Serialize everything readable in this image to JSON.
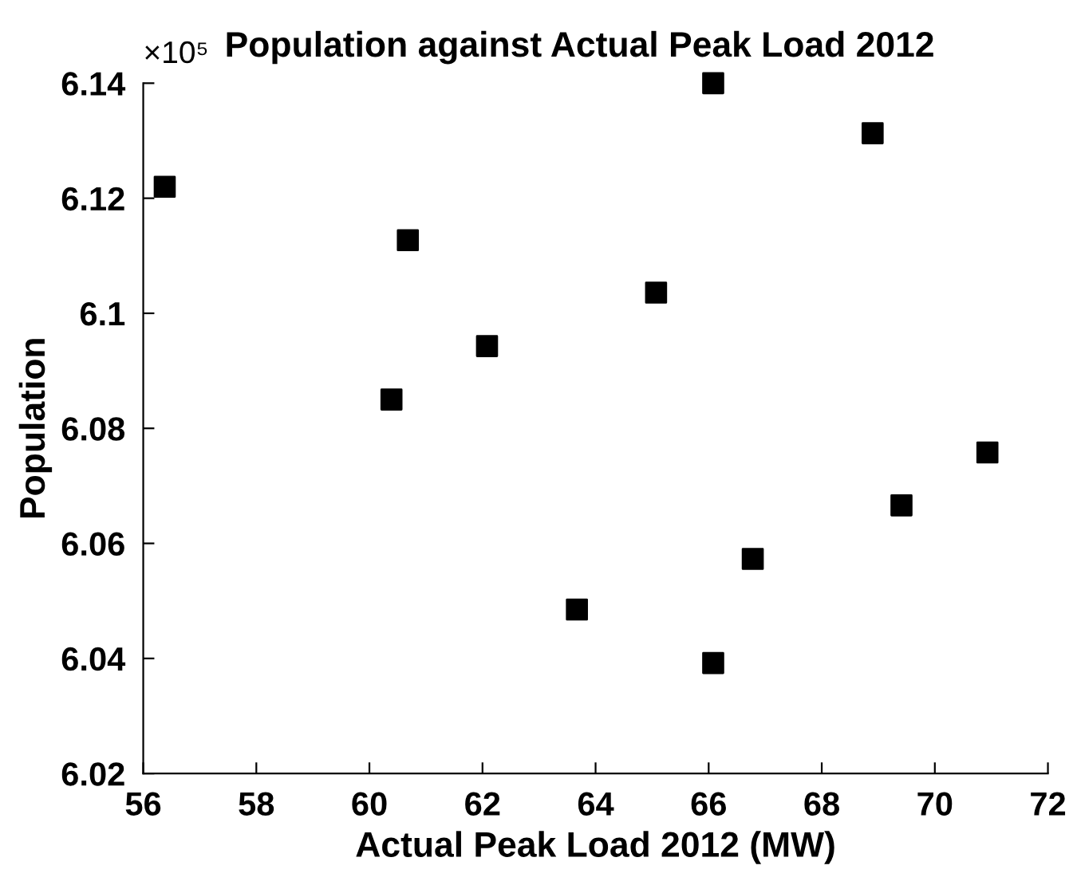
{
  "chart_data": {
    "type": "scatter",
    "title": "Population against Actual Peak Load 2012",
    "xlabel": "Actual Peak Load 2012 (MW)",
    "ylabel": "Population",
    "annotations": [
      "×10⁵"
    ],
    "series": [
      {
        "color": "#000000",
        "x": [
          56.38,
          60.68,
          60.39,
          62.08,
          66.08,
          68.9,
          65.07,
          70.93,
          69.41,
          66.78,
          63.67,
          66.08
        ],
        "values": [
          6.122,
          6.1127,
          6.085,
          6.0943,
          6.14,
          6.1313,
          6.1036,
          6.0758,
          6.0666,
          6.0573,
          6.0485,
          6.0392
        ]
      }
    ],
    "marker": "square",
    "grid": false,
    "legend": false,
    "xlim": [
      56,
      72
    ],
    "xticks": [
      56,
      58,
      60,
      62,
      64,
      66,
      68,
      70,
      72
    ],
    "ylim": [
      6.02,
      6.14
    ],
    "yticks": [
      {
        "value": 6.02,
        "label": "6.02"
      },
      {
        "value": 6.04,
        "label": "6.04"
      },
      {
        "value": 6.06,
        "label": "6.06"
      },
      {
        "value": 6.08,
        "label": "6.08"
      },
      {
        "value": 6.1,
        "label": "6.1"
      },
      {
        "value": 6.12,
        "label": "6.12"
      },
      {
        "value": 6.14,
        "label": "6.14"
      }
    ]
  }
}
